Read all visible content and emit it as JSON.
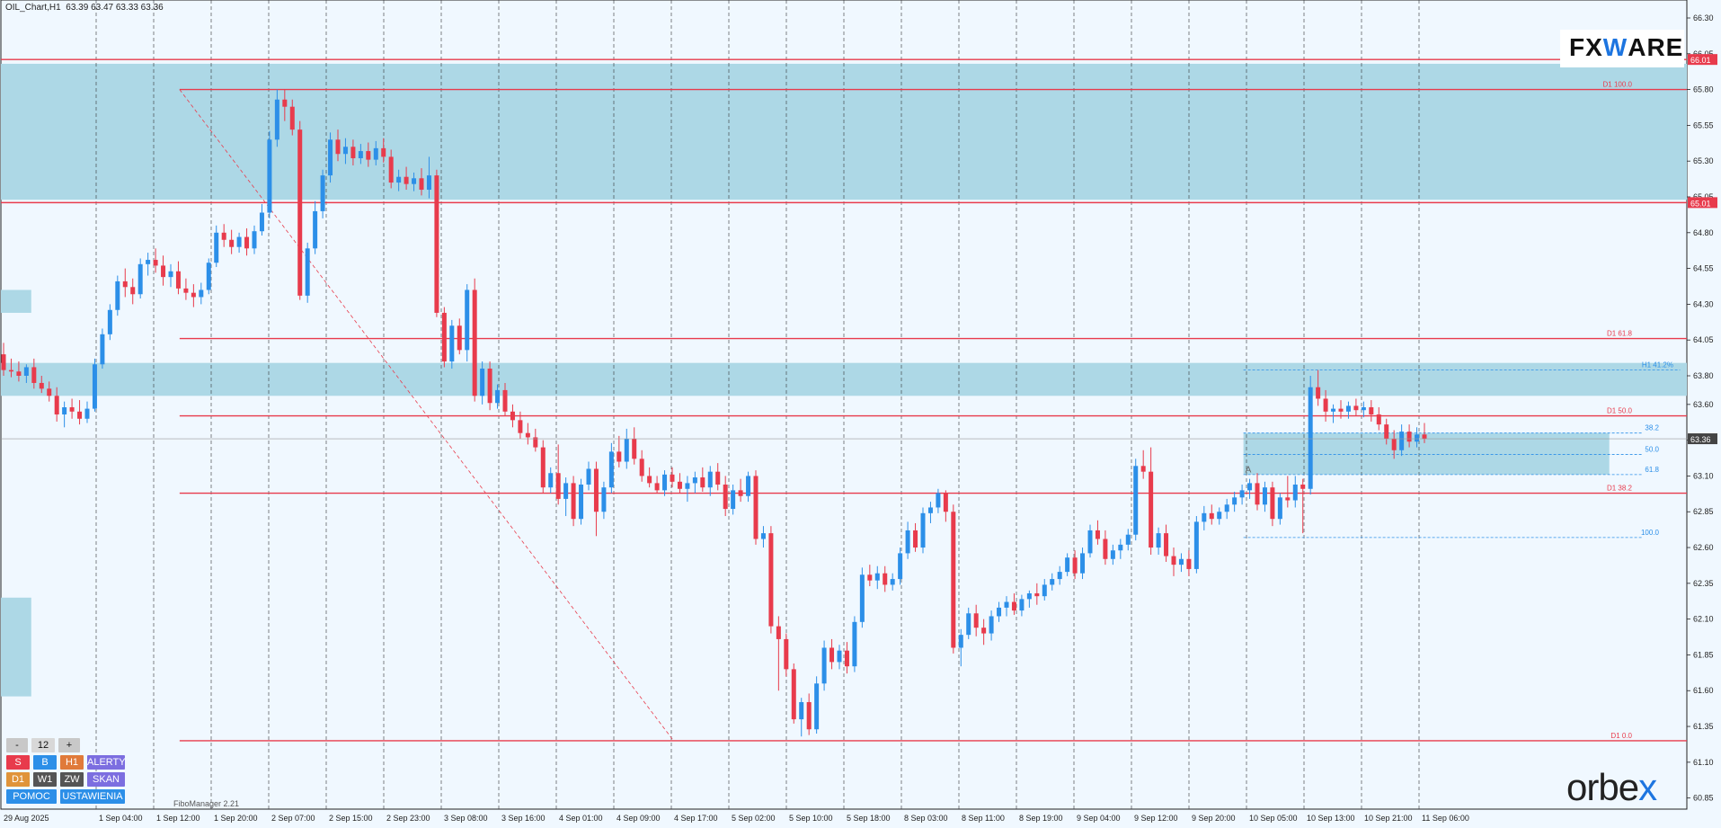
{
  "header": {
    "symbol": "OIL_Chart,H1",
    "ohlc": "63.39 63.47 63.33 63.36"
  },
  "branding": {
    "fxware_pre": "FX",
    "fxware_accent": "W",
    "fxware_post": "ARE",
    "orbex_pre": "orbe",
    "orbex_accent": "x"
  },
  "footer": {
    "tool": "FiboManager 2.21"
  },
  "panel": {
    "row1": [
      {
        "label": "-",
        "color": "#c8c8c8",
        "text": "#111"
      },
      {
        "label": "12",
        "color": "#d8d8d8",
        "text": "#111"
      },
      {
        "label": "+",
        "color": "#c8c8c8",
        "text": "#111"
      }
    ],
    "row2": [
      {
        "label": "S",
        "color": "#e83b4c"
      },
      {
        "label": "B",
        "color": "#2c8fe8"
      },
      {
        "label": "H1",
        "color": "#e07a3a"
      },
      {
        "label": "ALERTY",
        "color": "#7c6ee0"
      }
    ],
    "row3": [
      {
        "label": "D1",
        "color": "#e0943a"
      },
      {
        "label": "W1",
        "color": "#555555"
      },
      {
        "label": "ZW",
        "color": "#555555"
      },
      {
        "label": "SKAN",
        "color": "#7c6ee0"
      }
    ],
    "row4": [
      {
        "label": "POMOC",
        "color": "#2c8fe8"
      },
      {
        "label": "USTAWIENIA",
        "color": "#2c8fe8"
      }
    ]
  },
  "chart_data": {
    "type": "candlestick",
    "ylim": [
      60.8,
      66.3
    ],
    "y_ticks": [
      66.3,
      66.05,
      65.8,
      65.55,
      65.3,
      65.05,
      64.8,
      64.55,
      64.3,
      64.05,
      63.8,
      63.6,
      63.35,
      63.1,
      62.85,
      62.6,
      62.35,
      62.1,
      61.85,
      61.6,
      61.35,
      61.1,
      60.85
    ],
    "x_ticks": [
      "29 Aug 2025",
      "1 Sep 04:00",
      "1 Sep 12:00",
      "1 Sep 20:00",
      "2 Sep 07:00",
      "2 Sep 15:00",
      "2 Sep 23:00",
      "3 Sep 08:00",
      "3 Sep 16:00",
      "4 Sep 01:00",
      "4 Sep 09:00",
      "4 Sep 17:00",
      "5 Sep 02:00",
      "5 Sep 10:00",
      "5 Sep 18:00",
      "8 Sep 03:00",
      "8 Sep 11:00",
      "8 Sep 19:00",
      "9 Sep 04:00",
      "9 Sep 12:00",
      "9 Sep 20:00",
      "10 Sep 05:00",
      "10 Sep 13:00",
      "10 Sep 21:00",
      "11 Sep 06:00"
    ],
    "price_tags": [
      {
        "label": "66.01",
        "value": 66.01,
        "color": "#e83b4c"
      },
      {
        "label": "65.01",
        "value": 65.01,
        "color": "#e83b4c"
      },
      {
        "label": "63.36",
        "value": 63.36,
        "color": "#444444"
      }
    ],
    "zones": [
      {
        "y1": 65.98,
        "y2": 65.03,
        "from": 0.0,
        "to": 1.0
      },
      {
        "y1": 64.4,
        "y2": 64.24,
        "from": 0.0,
        "to": 0.018
      },
      {
        "y1": 63.89,
        "y2": 63.66,
        "from": 0.0,
        "to": 1.0
      },
      {
        "y1": 62.25,
        "y2": 61.56,
        "from": 0.0,
        "to": 0.018
      },
      {
        "y1": 63.4,
        "y2": 63.11,
        "from": 0.737,
        "to": 0.954
      }
    ],
    "levels": [
      {
        "label": "",
        "value": 66.01,
        "from": 0.0,
        "to": 1.0,
        "color": "#e83b4c"
      },
      {
        "label": "D1 100.0",
        "value": 65.8,
        "from": 0.106,
        "to": 1.0,
        "color": "#e83b4c"
      },
      {
        "label": "",
        "value": 65.01,
        "from": 0.0,
        "to": 1.0,
        "color": "#e83b4c"
      },
      {
        "label": "D1 61.8",
        "value": 64.06,
        "from": 0.106,
        "to": 1.0,
        "color": "#e83b4c"
      },
      {
        "label": "D1 50.0",
        "value": 63.52,
        "from": 0.106,
        "to": 1.0,
        "color": "#e83b4c"
      },
      {
        "label": "D1 38.2",
        "value": 62.98,
        "from": 0.106,
        "to": 1.0,
        "color": "#e83b4c"
      },
      {
        "label": "D1 0.0",
        "value": 61.25,
        "from": 0.106,
        "to": 1.0,
        "color": "#e83b4c"
      }
    ],
    "h1_levels": [
      {
        "label": "H1 41.2%",
        "value": 63.84
      },
      {
        "label": "38.2",
        "value": 63.4
      },
      {
        "label": "50.0",
        "value": 63.25
      },
      {
        "label": "61.8",
        "value": 63.11
      },
      {
        "label": "100.0",
        "value": 62.67
      }
    ],
    "h1_mark": "A",
    "candles": [
      [
        63.95,
        64.03,
        63.8,
        63.84
      ],
      [
        63.84,
        63.92,
        63.79,
        63.83
      ],
      [
        63.83,
        63.9,
        63.76,
        63.8
      ],
      [
        63.8,
        63.88,
        63.75,
        63.86
      ],
      [
        63.86,
        63.92,
        63.71,
        63.75
      ],
      [
        63.75,
        63.8,
        63.68,
        63.71
      ],
      [
        63.71,
        63.76,
        63.62,
        63.66
      ],
      [
        63.66,
        63.72,
        63.48,
        63.53
      ],
      [
        63.53,
        63.62,
        63.44,
        63.58
      ],
      [
        63.58,
        63.64,
        63.5,
        63.55
      ],
      [
        63.55,
        63.63,
        63.46,
        63.5
      ],
      [
        63.5,
        63.62,
        63.47,
        63.57
      ],
      [
        63.57,
        63.92,
        63.55,
        63.88
      ],
      [
        63.88,
        64.13,
        63.85,
        64.09
      ],
      [
        64.09,
        64.3,
        64.05,
        64.26
      ],
      [
        64.26,
        64.5,
        64.22,
        64.46
      ],
      [
        64.46,
        64.55,
        64.35,
        64.42
      ],
      [
        64.42,
        64.48,
        64.3,
        64.37
      ],
      [
        64.37,
        64.62,
        64.34,
        64.58
      ],
      [
        64.58,
        64.66,
        64.5,
        64.61
      ],
      [
        64.61,
        64.69,
        64.52,
        64.57
      ],
      [
        64.57,
        64.64,
        64.43,
        64.49
      ],
      [
        64.49,
        64.58,
        64.42,
        64.53
      ],
      [
        64.53,
        64.6,
        64.37,
        64.41
      ],
      [
        64.41,
        64.48,
        64.33,
        64.38
      ],
      [
        64.38,
        64.44,
        64.28,
        64.35
      ],
      [
        64.35,
        64.45,
        64.3,
        64.4
      ],
      [
        64.4,
        64.62,
        64.37,
        64.59
      ],
      [
        64.59,
        64.85,
        64.56,
        64.8
      ],
      [
        64.8,
        64.86,
        64.7,
        64.75
      ],
      [
        64.75,
        64.82,
        64.65,
        64.7
      ],
      [
        64.7,
        64.8,
        64.66,
        64.77
      ],
      [
        64.77,
        64.83,
        64.64,
        64.69
      ],
      [
        64.69,
        64.85,
        64.65,
        64.81
      ],
      [
        64.81,
        65.0,
        64.78,
        64.94
      ],
      [
        64.94,
        65.51,
        64.9,
        65.45
      ],
      [
        65.45,
        65.8,
        65.4,
        65.73
      ],
      [
        65.73,
        65.8,
        65.58,
        65.68
      ],
      [
        65.68,
        65.73,
        65.48,
        65.52
      ],
      [
        65.52,
        65.58,
        64.33,
        64.36
      ],
      [
        64.36,
        64.73,
        64.31,
        64.69
      ],
      [
        64.69,
        65.02,
        64.65,
        64.95
      ],
      [
        64.95,
        65.24,
        64.9,
        65.2
      ],
      [
        65.2,
        65.5,
        65.15,
        65.45
      ],
      [
        65.45,
        65.52,
        65.3,
        65.35
      ],
      [
        65.35,
        65.46,
        65.28,
        65.4
      ],
      [
        65.4,
        65.45,
        65.27,
        65.32
      ],
      [
        65.32,
        65.42,
        65.28,
        65.37
      ],
      [
        65.37,
        65.43,
        65.26,
        65.31
      ],
      [
        65.31,
        65.44,
        65.27,
        65.39
      ],
      [
        65.39,
        65.46,
        65.29,
        65.33
      ],
      [
        65.33,
        65.38,
        65.11,
        65.15
      ],
      [
        65.15,
        65.24,
        65.09,
        65.19
      ],
      [
        65.19,
        65.26,
        65.1,
        65.14
      ],
      [
        65.14,
        65.22,
        65.09,
        65.18
      ],
      [
        65.18,
        65.25,
        65.06,
        65.1
      ],
      [
        65.1,
        65.33,
        65.04,
        65.2
      ],
      [
        65.2,
        65.24,
        64.21,
        64.24
      ],
      [
        64.24,
        64.28,
        63.86,
        63.9
      ],
      [
        63.9,
        64.19,
        63.85,
        64.15
      ],
      [
        64.15,
        64.2,
        63.95,
        63.98
      ],
      [
        63.98,
        64.44,
        63.9,
        64.4
      ],
      [
        64.4,
        64.48,
        63.62,
        63.66
      ],
      [
        63.66,
        63.9,
        63.6,
        63.85
      ],
      [
        63.85,
        63.9,
        63.56,
        63.61
      ],
      [
        63.61,
        63.74,
        63.57,
        63.7
      ],
      [
        63.7,
        63.75,
        63.52,
        63.55
      ],
      [
        63.55,
        63.6,
        63.44,
        63.49
      ],
      [
        63.49,
        63.55,
        63.36,
        63.4
      ],
      [
        63.4,
        63.47,
        63.32,
        63.37
      ],
      [
        63.37,
        63.43,
        63.27,
        63.3
      ],
      [
        63.3,
        63.35,
        62.98,
        63.02
      ],
      [
        63.02,
        63.16,
        62.98,
        63.12
      ],
      [
        63.12,
        63.32,
        62.9,
        62.94
      ],
      [
        62.94,
        63.09,
        62.82,
        63.05
      ],
      [
        63.05,
        63.1,
        62.75,
        62.8
      ],
      [
        62.8,
        63.08,
        62.76,
        63.04
      ],
      [
        63.04,
        63.2,
        63.0,
        63.15
      ],
      [
        63.15,
        63.2,
        62.68,
        62.85
      ],
      [
        62.85,
        63.06,
        62.8,
        63.02
      ],
      [
        63.02,
        63.33,
        62.98,
        63.27
      ],
      [
        63.27,
        63.38,
        63.16,
        63.2
      ],
      [
        63.2,
        63.43,
        63.15,
        63.36
      ],
      [
        63.36,
        63.44,
        63.18,
        63.22
      ],
      [
        63.22,
        63.28,
        63.06,
        63.1
      ],
      [
        63.1,
        63.16,
        63.02,
        63.05
      ],
      [
        63.05,
        63.1,
        62.98,
        63.0
      ],
      [
        63.0,
        63.14,
        62.96,
        63.11
      ],
      [
        63.11,
        63.16,
        63.02,
        63.06
      ],
      [
        63.06,
        63.12,
        62.98,
        63.01
      ],
      [
        63.01,
        63.1,
        62.92,
        63.05
      ],
      [
        63.05,
        63.13,
        62.98,
        63.09
      ],
      [
        63.09,
        63.16,
        62.99,
        63.02
      ],
      [
        63.02,
        63.17,
        62.96,
        63.13
      ],
      [
        63.13,
        63.19,
        63.0,
        63.04
      ],
      [
        63.04,
        63.1,
        62.82,
        62.87
      ],
      [
        62.87,
        63.04,
        62.83,
        63.0
      ],
      [
        63.0,
        63.08,
        62.92,
        62.96
      ],
      [
        62.96,
        63.13,
        62.92,
        63.1
      ],
      [
        63.1,
        63.14,
        62.62,
        62.66
      ],
      [
        62.66,
        62.75,
        62.6,
        62.7
      ],
      [
        62.7,
        62.75,
        62.0,
        62.05
      ],
      [
        62.05,
        62.12,
        61.6,
        61.96
      ],
      [
        61.96,
        62.0,
        61.7,
        61.75
      ],
      [
        61.75,
        61.79,
        61.37,
        61.4
      ],
      [
        61.4,
        61.55,
        61.28,
        61.52
      ],
      [
        61.52,
        61.58,
        61.29,
        61.33
      ],
      [
        61.33,
        61.7,
        61.3,
        61.65
      ],
      [
        61.65,
        61.95,
        61.6,
        61.9
      ],
      [
        61.9,
        61.96,
        61.75,
        61.8
      ],
      [
        61.8,
        61.92,
        61.75,
        61.88
      ],
      [
        61.88,
        61.94,
        61.72,
        61.77
      ],
      [
        61.77,
        62.12,
        61.73,
        62.08
      ],
      [
        62.08,
        62.46,
        62.04,
        62.41
      ],
      [
        62.41,
        62.48,
        62.33,
        62.37
      ],
      [
        62.37,
        62.47,
        62.31,
        62.42
      ],
      [
        62.42,
        62.47,
        62.29,
        62.34
      ],
      [
        62.34,
        62.42,
        62.3,
        62.38
      ],
      [
        62.38,
        62.6,
        62.34,
        62.56
      ],
      [
        62.56,
        62.78,
        62.52,
        62.72
      ],
      [
        62.72,
        62.77,
        62.57,
        62.6
      ],
      [
        62.6,
        62.88,
        62.56,
        62.84
      ],
      [
        62.84,
        62.92,
        62.77,
        62.88
      ],
      [
        62.88,
        63.01,
        62.84,
        62.98
      ],
      [
        62.98,
        63.0,
        62.78,
        62.85
      ],
      [
        62.85,
        62.9,
        61.86,
        61.9
      ],
      [
        61.9,
        62.03,
        61.77,
        61.99
      ],
      [
        61.99,
        62.18,
        61.96,
        62.14
      ],
      [
        62.14,
        62.2,
        61.98,
        62.04
      ],
      [
        62.04,
        62.1,
        61.92,
        62.0
      ],
      [
        62.0,
        62.16,
        61.95,
        62.12
      ],
      [
        62.12,
        62.22,
        62.08,
        62.18
      ],
      [
        62.18,
        62.26,
        62.12,
        62.22
      ],
      [
        62.22,
        62.28,
        62.13,
        62.16
      ],
      [
        62.16,
        62.27,
        62.12,
        62.24
      ],
      [
        62.24,
        62.3,
        62.18,
        62.28
      ],
      [
        62.28,
        62.35,
        62.2,
        62.26
      ],
      [
        62.26,
        62.38,
        62.23,
        62.34
      ],
      [
        62.34,
        62.42,
        62.3,
        62.38
      ],
      [
        62.38,
        62.47,
        62.34,
        62.43
      ],
      [
        62.43,
        62.56,
        62.4,
        62.53
      ],
      [
        62.53,
        62.58,
        62.38,
        62.42
      ],
      [
        62.42,
        62.6,
        62.38,
        62.56
      ],
      [
        62.56,
        62.76,
        62.53,
        62.72
      ],
      [
        62.72,
        62.79,
        62.62,
        62.66
      ],
      [
        62.66,
        62.72,
        62.48,
        62.52
      ],
      [
        62.52,
        62.62,
        62.48,
        62.58
      ],
      [
        62.58,
        62.66,
        62.52,
        62.62
      ],
      [
        62.62,
        62.73,
        62.58,
        62.69
      ],
      [
        62.69,
        63.22,
        62.65,
        63.17
      ],
      [
        63.17,
        63.28,
        63.08,
        63.13
      ],
      [
        63.13,
        63.3,
        62.55,
        62.6
      ],
      [
        62.6,
        62.74,
        62.55,
        62.7
      ],
      [
        62.7,
        62.76,
        62.5,
        62.54
      ],
      [
        62.54,
        62.6,
        62.4,
        62.48
      ],
      [
        62.48,
        62.56,
        62.43,
        62.52
      ],
      [
        62.52,
        62.58,
        62.4,
        62.45
      ],
      [
        62.45,
        62.82,
        62.42,
        62.78
      ],
      [
        62.78,
        62.89,
        62.72,
        62.84
      ],
      [
        62.84,
        62.9,
        62.76,
        62.8
      ],
      [
        62.8,
        62.88,
        62.76,
        62.85
      ],
      [
        62.85,
        62.94,
        62.8,
        62.9
      ],
      [
        62.9,
        62.99,
        62.85,
        62.95
      ],
      [
        62.95,
        63.04,
        62.9,
        63.0
      ],
      [
        63.0,
        63.08,
        62.94,
        63.05
      ],
      [
        63.05,
        63.12,
        62.86,
        62.9
      ],
      [
        62.9,
        63.06,
        62.85,
        63.02
      ],
      [
        63.02,
        63.06,
        62.75,
        62.8
      ],
      [
        62.8,
        62.98,
        62.76,
        62.95
      ],
      [
        62.95,
        63.1,
        62.88,
        62.93
      ],
      [
        62.93,
        63.1,
        62.88,
        63.04
      ],
      [
        63.04,
        63.08,
        62.7,
        63.01
      ],
      [
        63.01,
        63.8,
        62.97,
        63.72
      ],
      [
        63.72,
        63.84,
        63.59,
        63.64
      ],
      [
        63.64,
        63.7,
        63.48,
        63.55
      ],
      [
        63.55,
        63.6,
        63.47,
        63.57
      ],
      [
        63.57,
        63.63,
        63.5,
        63.55
      ],
      [
        63.55,
        63.62,
        63.5,
        63.59
      ],
      [
        63.59,
        63.64,
        63.52,
        63.56
      ],
      [
        63.56,
        63.62,
        63.51,
        63.58
      ],
      [
        63.58,
        63.63,
        63.48,
        63.53
      ],
      [
        63.53,
        63.58,
        63.42,
        63.46
      ],
      [
        63.46,
        63.5,
        63.32,
        63.36
      ],
      [
        63.36,
        63.42,
        63.22,
        63.28
      ],
      [
        63.28,
        63.46,
        63.24,
        63.41
      ],
      [
        63.41,
        63.46,
        63.3,
        63.34
      ],
      [
        63.34,
        63.44,
        63.3,
        63.39
      ],
      [
        63.39,
        63.47,
        63.33,
        63.36
      ]
    ]
  }
}
